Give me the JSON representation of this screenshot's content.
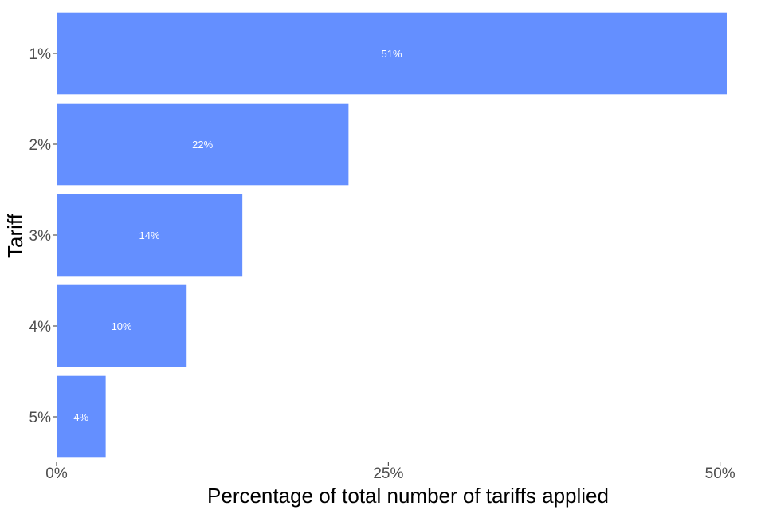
{
  "chart_data": {
    "type": "bar",
    "orientation": "horizontal",
    "title": "",
    "xlabel": "Percentage of total number of tariffs applied",
    "ylabel": "Tariff",
    "categories": [
      "1%",
      "2%",
      "3%",
      "4%",
      "5%"
    ],
    "values": [
      50.5,
      22.0,
      14.0,
      9.8,
      3.7
    ],
    "value_labels": [
      "51%",
      "22%",
      "14%",
      "10%",
      "4%"
    ],
    "xlim": [
      0,
      50.5
    ],
    "xticks": [
      0,
      25,
      50
    ],
    "xtick_labels": [
      "0%",
      "25%",
      "50%"
    ],
    "bar_color": "#648FFF",
    "label_color": "#FFFFFF",
    "grid": false,
    "legend": "none"
  }
}
